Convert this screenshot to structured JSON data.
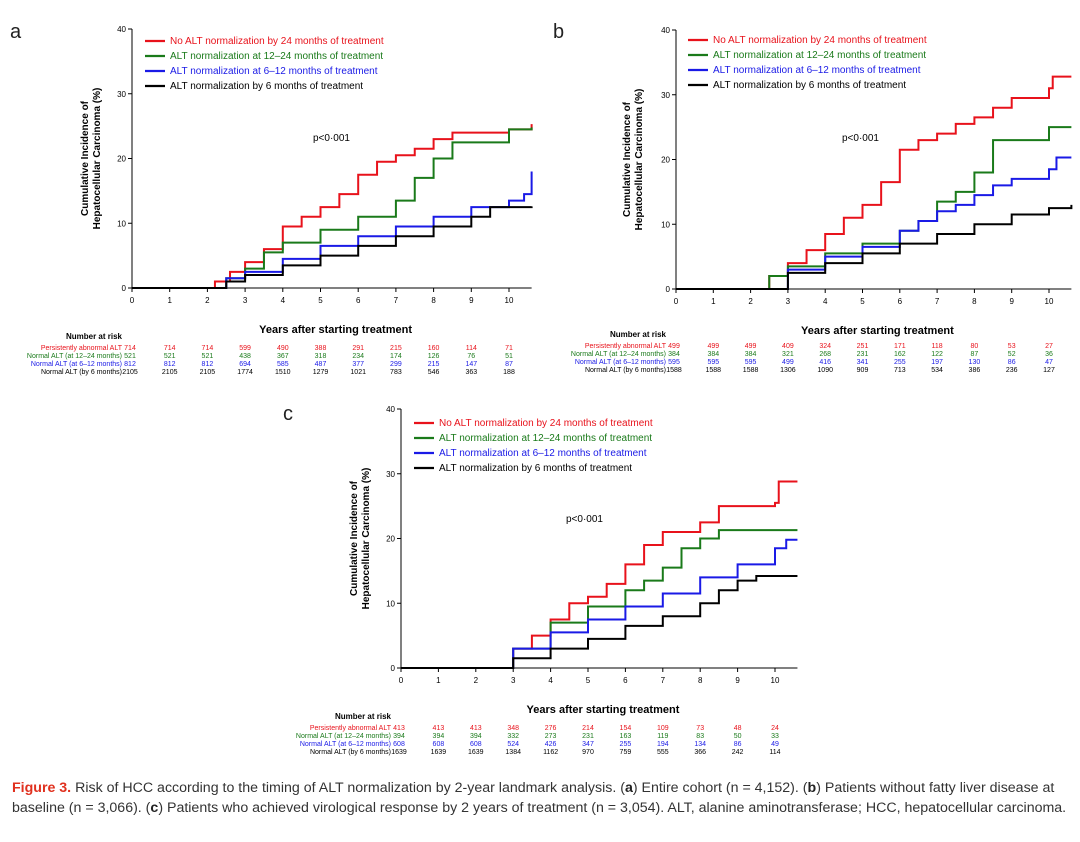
{
  "chart_data": [
    {
      "type": "line",
      "panel": "a",
      "p_value": "p<0·001",
      "xlabel": "Years after starting treatment",
      "ylabel": [
        "Cumulative Incidence of",
        "Hepatocellular Carcinoma (%)"
      ],
      "xlim": [
        0,
        10.6
      ],
      "ylim": [
        0,
        40
      ],
      "xticks": [
        0,
        1,
        2,
        3,
        4,
        5,
        6,
        7,
        8,
        9,
        10
      ],
      "yticks": [
        0,
        10,
        20,
        30,
        40
      ],
      "legend_placement": "top-left",
      "series": [
        {
          "name": "No ALT normalization by 24 months of treatment",
          "color": "#e8121b",
          "risk_label": "Persistently abnormal ALT",
          "points": [
            [
              0,
              0
            ],
            [
              1.9,
              0
            ],
            [
              2.2,
              1
            ],
            [
              2.6,
              2.5
            ],
            [
              3,
              4
            ],
            [
              3.5,
              6
            ],
            [
              4,
              9.5
            ],
            [
              4.5,
              11
            ],
            [
              5,
              12.5
            ],
            [
              5.5,
              14.5
            ],
            [
              6,
              17.5
            ],
            [
              6.5,
              19.5
            ],
            [
              7,
              20.5
            ],
            [
              7.5,
              21.5
            ],
            [
              8,
              23
            ],
            [
              8.5,
              24
            ],
            [
              10,
              24.5
            ],
            [
              10.6,
              25.3
            ]
          ],
          "at_risk": [
            714,
            714,
            714,
            599,
            490,
            388,
            291,
            215,
            160,
            114,
            71
          ]
        },
        {
          "name": "ALT normalization at 12–24 months of treatment",
          "color": "#1a7a1a",
          "risk_label": "Normal ALT (at 12–24 months)",
          "points": [
            [
              0,
              0
            ],
            [
              1.9,
              0
            ],
            [
              2.5,
              1.5
            ],
            [
              3,
              3
            ],
            [
              3.5,
              5.5
            ],
            [
              4,
              7
            ],
            [
              5,
              9
            ],
            [
              6,
              11
            ],
            [
              7,
              13.5
            ],
            [
              7.5,
              17
            ],
            [
              8,
              20
            ],
            [
              8.5,
              22.5
            ],
            [
              9.5,
              22.5
            ],
            [
              10,
              24.5
            ],
            [
              10.6,
              24.8
            ]
          ],
          "at_risk": [
            521,
            521,
            521,
            438,
            367,
            318,
            234,
            174,
            126,
            76,
            51
          ]
        },
        {
          "name": "ALT normalization at 6–12 months of treatment",
          "color": "#1a1ae6",
          "risk_label": "Normal ALT (at 6–12 months)",
          "points": [
            [
              0,
              0
            ],
            [
              1.9,
              0
            ],
            [
              2.5,
              1.5
            ],
            [
              3,
              2.5
            ],
            [
              4,
              4.5
            ],
            [
              5,
              6.5
            ],
            [
              6,
              8
            ],
            [
              7,
              9.5
            ],
            [
              8,
              11
            ],
            [
              9,
              12.5
            ],
            [
              10,
              13.5
            ],
            [
              10.4,
              14.5
            ],
            [
              10.6,
              18
            ]
          ],
          "at_risk": [
            812,
            812,
            812,
            694,
            585,
            487,
            377,
            299,
            215,
            147,
            87
          ]
        },
        {
          "name": "ALT normalization by 6 months of treatment",
          "color": "#000000",
          "risk_label": "Normal ALT (by 6 months)",
          "points": [
            [
              0,
              0
            ],
            [
              1.9,
              0
            ],
            [
              2.5,
              1
            ],
            [
              3,
              2
            ],
            [
              4,
              3.5
            ],
            [
              5,
              5
            ],
            [
              6,
              6.5
            ],
            [
              7,
              8
            ],
            [
              8,
              9.5
            ],
            [
              9,
              11
            ],
            [
              9.5,
              12.5
            ],
            [
              10.6,
              12.6
            ]
          ],
          "at_risk": [
            2105,
            2105,
            2105,
            1774,
            1510,
            1279,
            1021,
            783,
            546,
            363,
            188
          ]
        }
      ]
    },
    {
      "type": "line",
      "panel": "b",
      "p_value": "p<0·001",
      "xlabel": "Years after starting treatment",
      "ylabel": [
        "Cumulative Incidence of",
        "Hepatocellular Carcinoma (%)"
      ],
      "xlim": [
        0,
        10.6
      ],
      "ylim": [
        0,
        40
      ],
      "xticks": [
        0,
        1,
        2,
        3,
        4,
        5,
        6,
        7,
        8,
        9,
        10
      ],
      "yticks": [
        0,
        10,
        20,
        30,
        40
      ],
      "legend_placement": "top-left",
      "series": [
        {
          "name": "No ALT normalization by 24 months of treatment",
          "color": "#e8121b",
          "risk_label": "Persistently abnormal ALT",
          "points": [
            [
              0,
              0
            ],
            [
              2,
              0
            ],
            [
              2.5,
              2
            ],
            [
              3,
              4
            ],
            [
              3.5,
              6
            ],
            [
              4,
              8.5
            ],
            [
              4.5,
              11
            ],
            [
              5,
              13
            ],
            [
              5.5,
              16.5
            ],
            [
              6,
              21.5
            ],
            [
              6.5,
              23
            ],
            [
              7,
              24
            ],
            [
              7.5,
              25.5
            ],
            [
              8,
              26.5
            ],
            [
              8.5,
              28
            ],
            [
              9,
              29.5
            ],
            [
              10,
              31
            ],
            [
              10.1,
              32.8
            ],
            [
              10.6,
              32.8
            ]
          ],
          "at_risk": [
            499,
            499,
            499,
            409,
            324,
            251,
            171,
            118,
            80,
            53,
            27
          ]
        },
        {
          "name": "ALT normalization at 12–24 months of treatment",
          "color": "#1a7a1a",
          "risk_label": "Normal ALT (at 12–24 months)",
          "points": [
            [
              0,
              0
            ],
            [
              2,
              0
            ],
            [
              2.5,
              2
            ],
            [
              3,
              3.5
            ],
            [
              4,
              5.5
            ],
            [
              5,
              7
            ],
            [
              6,
              9
            ],
            [
              6.5,
              10.5
            ],
            [
              7,
              13.5
            ],
            [
              7.5,
              15
            ],
            [
              8,
              18
            ],
            [
              8.5,
              23
            ],
            [
              9,
              23
            ],
            [
              10,
              25
            ],
            [
              10.6,
              25
            ]
          ],
          "at_risk": [
            384,
            384,
            384,
            321,
            268,
            231,
            162,
            122,
            87,
            52,
            36
          ]
        },
        {
          "name": "ALT normalization at 6–12 months of treatment",
          "color": "#1a1ae6",
          "risk_label": "Normal ALT (at 6–12 months)",
          "points": [
            [
              0,
              0
            ],
            [
              2,
              0
            ],
            [
              3,
              3
            ],
            [
              4,
              5
            ],
            [
              5,
              6.5
            ],
            [
              6,
              9
            ],
            [
              6.5,
              10.5
            ],
            [
              7,
              12
            ],
            [
              7.5,
              13
            ],
            [
              8,
              14.5
            ],
            [
              8.5,
              16
            ],
            [
              9,
              17
            ],
            [
              10,
              18.5
            ],
            [
              10.2,
              20.3
            ],
            [
              10.6,
              20.3
            ]
          ],
          "at_risk": [
            595,
            595,
            595,
            499,
            416,
            341,
            255,
            197,
            130,
            86,
            47
          ]
        },
        {
          "name": "ALT normalization by 6 months of treatment",
          "color": "#000000",
          "risk_label": "Normal ALT (by 6 months)",
          "points": [
            [
              0,
              0
            ],
            [
              2,
              0
            ],
            [
              3,
              2.5
            ],
            [
              4,
              4
            ],
            [
              5,
              5.5
            ],
            [
              6,
              7
            ],
            [
              7,
              8.5
            ],
            [
              8,
              10
            ],
            [
              9,
              11.5
            ],
            [
              10,
              12.5
            ],
            [
              10.6,
              13
            ]
          ],
          "at_risk": [
            1588,
            1588,
            1588,
            1306,
            1090,
            909,
            713,
            534,
            386,
            236,
            127
          ]
        }
      ]
    },
    {
      "type": "line",
      "panel": "c",
      "p_value": "p<0·001",
      "xlabel": "Years after starting treatment",
      "ylabel": [
        "Cumulative Incidence of",
        "Hepatocellular Carcinoma (%)"
      ],
      "xlim": [
        0,
        10.6
      ],
      "ylim": [
        0,
        40
      ],
      "xticks": [
        0,
        1,
        2,
        3,
        4,
        5,
        6,
        7,
        8,
        9,
        10
      ],
      "yticks": [
        0,
        10,
        20,
        30,
        40
      ],
      "legend_placement": "top-left",
      "series": [
        {
          "name": "No ALT normalization by 24 months of treatment",
          "color": "#e8121b",
          "risk_label": "Persistently abnormal ALT",
          "points": [
            [
              0,
              0
            ],
            [
              2,
              0
            ],
            [
              3,
              3
            ],
            [
              3.5,
              5
            ],
            [
              4,
              7.5
            ],
            [
              4.5,
              10
            ],
            [
              5,
              11
            ],
            [
              5.5,
              13
            ],
            [
              6,
              16
            ],
            [
              6.5,
              19
            ],
            [
              7,
              21
            ],
            [
              8,
              22.5
            ],
            [
              8.5,
              25
            ],
            [
              10,
              25.5
            ],
            [
              10.1,
              28.8
            ],
            [
              10.6,
              28.8
            ]
          ],
          "at_risk": [
            413,
            413,
            413,
            348,
            276,
            214,
            154,
            109,
            73,
            48,
            24
          ]
        },
        {
          "name": "ALT normalization at 12–24 months of treatment",
          "color": "#1a7a1a",
          "risk_label": "Normal ALT (at 12–24 months)",
          "points": [
            [
              0,
              0
            ],
            [
              2,
              0
            ],
            [
              3,
              3
            ],
            [
              4,
              7
            ],
            [
              5,
              9.5
            ],
            [
              6,
              12
            ],
            [
              6.5,
              13.5
            ],
            [
              7,
              15.5
            ],
            [
              7.5,
              18.5
            ],
            [
              8,
              20
            ],
            [
              8.5,
              21.3
            ],
            [
              10.6,
              21.3
            ]
          ],
          "at_risk": [
            394,
            394,
            394,
            332,
            273,
            231,
            163,
            119,
            83,
            50,
            33
          ]
        },
        {
          "name": "ALT normalization at 6–12 months of treatment",
          "color": "#1a1ae6",
          "risk_label": "Normal ALT (at 6–12 months)",
          "points": [
            [
              0,
              0
            ],
            [
              2,
              0
            ],
            [
              3,
              3
            ],
            [
              4,
              5.5
            ],
            [
              5,
              7.5
            ],
            [
              6,
              9.5
            ],
            [
              7,
              11.5
            ],
            [
              8,
              14
            ],
            [
              9,
              16
            ],
            [
              10,
              18.5
            ],
            [
              10.3,
              19.8
            ],
            [
              10.6,
              19.8
            ]
          ],
          "at_risk": [
            608,
            608,
            608,
            524,
            426,
            347,
            255,
            194,
            134,
            86,
            49
          ]
        },
        {
          "name": "ALT normalization by 6 months of treatment",
          "color": "#000000",
          "risk_label": "Normal ALT (by 6 months)",
          "points": [
            [
              0,
              0
            ],
            [
              2,
              0
            ],
            [
              3,
              1.5
            ],
            [
              4,
              3
            ],
            [
              5,
              4.5
            ],
            [
              6,
              6.5
            ],
            [
              7,
              8
            ],
            [
              8,
              10
            ],
            [
              8.5,
              12
            ],
            [
              9,
              13.5
            ],
            [
              9.5,
              14.2
            ],
            [
              10.6,
              14.2
            ]
          ],
          "at_risk": [
            1639,
            1639,
            1639,
            1384,
            1162,
            970,
            759,
            555,
            366,
            242,
            114
          ]
        }
      ]
    }
  ],
  "risk_table_title": "Number at risk",
  "caption": {
    "figure_label": "Figure 3.",
    "parts": [
      " Risk of HCC according to the timing of ALT normalization by 2-year landmark analysis. (",
      "a",
      ") Entire cohort (n = 4,152). (",
      "b",
      ") Patients without fatty liver disease at baseline (n = 3,066). (",
      "c",
      ") Patients who achieved virological response by 2 years of treatment (n = 3,054). ALT, alanine aminotransferase; HCC, hepatocellular carcinoma."
    ]
  }
}
